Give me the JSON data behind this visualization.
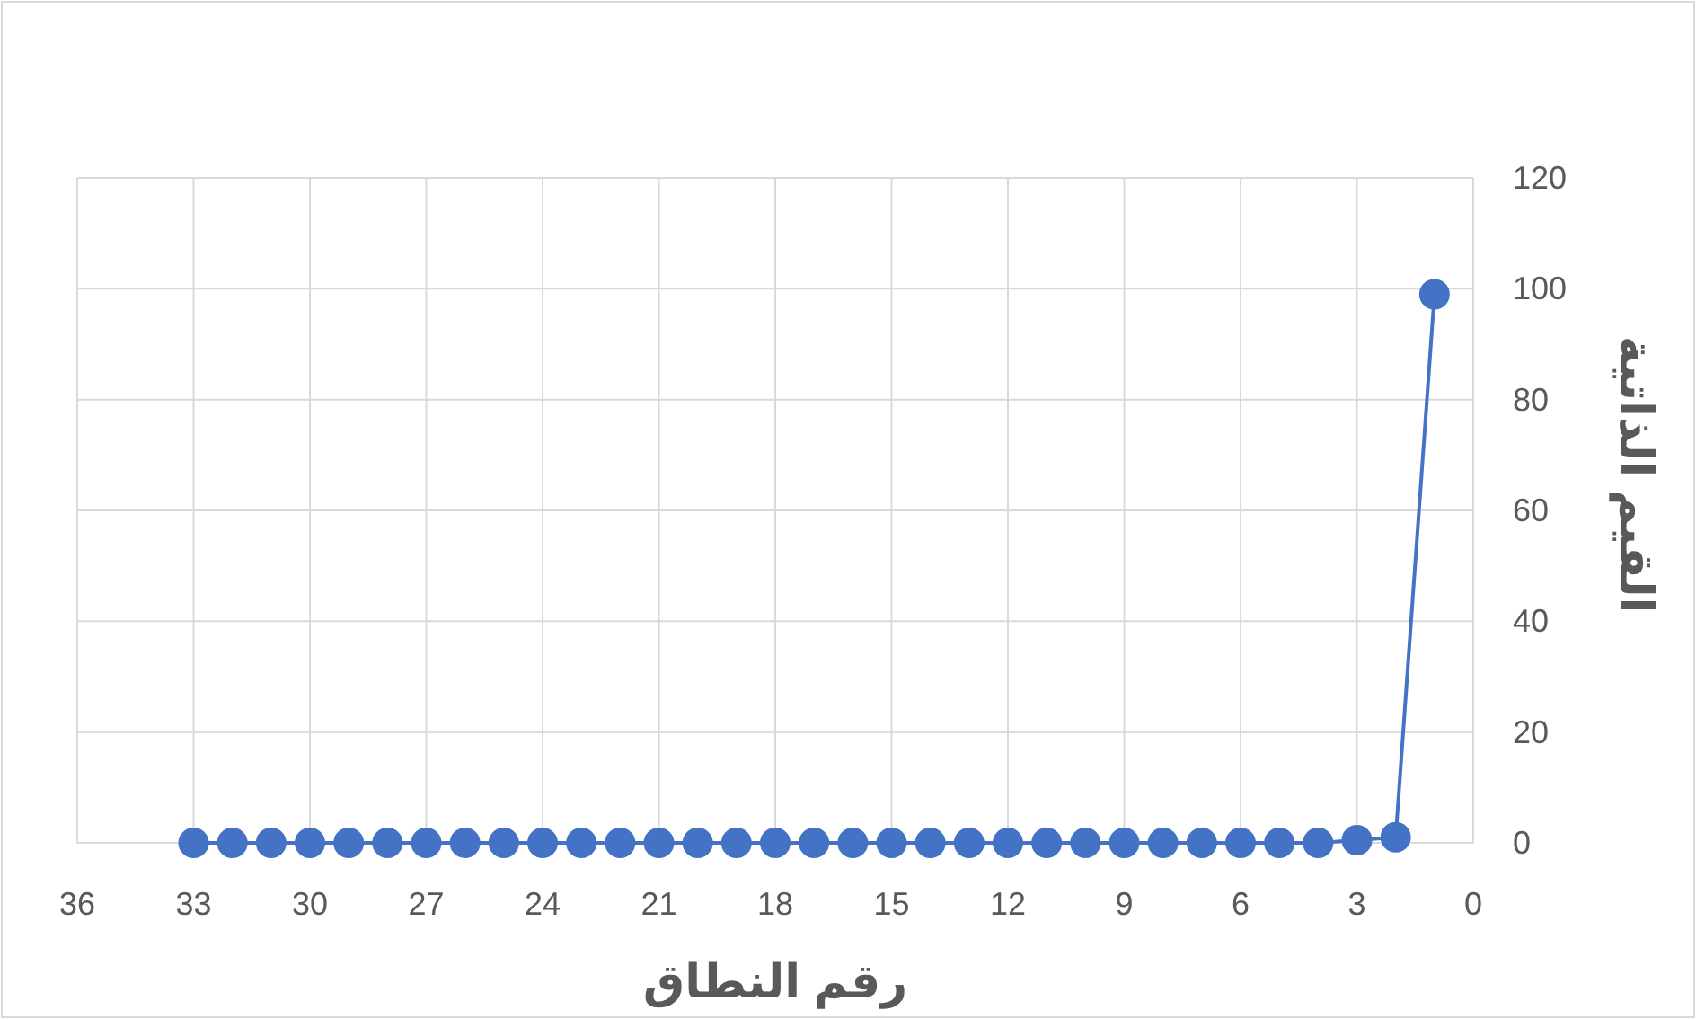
{
  "chart_data": {
    "type": "line",
    "xlabel": "رقم النطاق",
    "ylabel": "القيم الذاتية",
    "x": [
      1,
      2,
      3,
      4,
      5,
      6,
      7,
      8,
      9,
      10,
      11,
      12,
      13,
      14,
      15,
      16,
      17,
      18,
      19,
      20,
      21,
      22,
      23,
      24,
      25,
      26,
      27,
      28,
      29,
      30,
      31,
      32,
      33
    ],
    "series": [
      {
        "color": "#4472c4",
        "values": [
          99,
          1,
          0.5,
          0,
          0,
          0,
          0,
          0,
          0,
          0,
          0,
          0,
          0,
          0,
          0,
          0,
          0,
          0,
          0,
          0,
          0,
          0,
          0,
          0,
          0,
          0,
          0,
          0,
          0,
          0,
          0,
          0,
          0
        ]
      }
    ],
    "xlim": [
      36,
      0
    ],
    "xticks": [
      36,
      33,
      30,
      27,
      24,
      21,
      18,
      15,
      12,
      9,
      6,
      3,
      0
    ],
    "ylim": [
      0,
      120
    ],
    "yticks": [
      0,
      20,
      40,
      60,
      80,
      100,
      120
    ],
    "grid": true,
    "marker": "circle",
    "line_style": "solid"
  }
}
